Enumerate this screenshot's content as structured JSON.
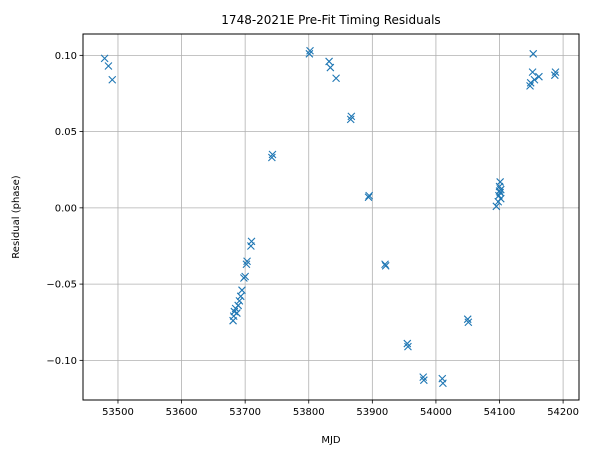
{
  "chart_data": {
    "type": "scatter",
    "title": "1748-2021E Pre-Fit Timing Residuals",
    "xlabel": "MJD",
    "ylabel": "Residual (phase)",
    "xlim": [
      53445,
      54225
    ],
    "ylim": [
      -0.126,
      0.114
    ],
    "xticks": [
      53500,
      53600,
      53700,
      53800,
      53900,
      54000,
      54100,
      54200
    ],
    "yticks": [
      -0.1,
      -0.05,
      0.0,
      0.05,
      0.1
    ],
    "xtick_labels": [
      "53500",
      "53600",
      "53700",
      "53800",
      "53900",
      "54000",
      "54100",
      "54200"
    ],
    "ytick_labels": [
      "−0.10",
      "−0.05",
      "0.00",
      "0.05",
      "0.10"
    ],
    "grid": true,
    "marker": "x",
    "color": "#1f77b4",
    "points": [
      {
        "x": 53479,
        "y": 0.098
      },
      {
        "x": 53485,
        "y": 0.093
      },
      {
        "x": 53491,
        "y": 0.084
      },
      {
        "x": 53681,
        "y": -0.074
      },
      {
        "x": 53682,
        "y": -0.071
      },
      {
        "x": 53683,
        "y": -0.068
      },
      {
        "x": 53685,
        "y": -0.066
      },
      {
        "x": 53687,
        "y": -0.069
      },
      {
        "x": 53689,
        "y": -0.064
      },
      {
        "x": 53691,
        "y": -0.061
      },
      {
        "x": 53693,
        "y": -0.058
      },
      {
        "x": 53695,
        "y": -0.054
      },
      {
        "x": 53698,
        "y": -0.046
      },
      {
        "x": 53700,
        "y": -0.045
      },
      {
        "x": 53702,
        "y": -0.037
      },
      {
        "x": 53703,
        "y": -0.035
      },
      {
        "x": 53709,
        "y": -0.025
      },
      {
        "x": 53710,
        "y": -0.022
      },
      {
        "x": 53742,
        "y": 0.033
      },
      {
        "x": 53743,
        "y": 0.035
      },
      {
        "x": 53801,
        "y": 0.101
      },
      {
        "x": 53802,
        "y": 0.103
      },
      {
        "x": 53832,
        "y": 0.096
      },
      {
        "x": 53834,
        "y": 0.092
      },
      {
        "x": 53843,
        "y": 0.085
      },
      {
        "x": 53866,
        "y": 0.058
      },
      {
        "x": 53867,
        "y": 0.06
      },
      {
        "x": 53894,
        "y": 0.007
      },
      {
        "x": 53895,
        "y": 0.008
      },
      {
        "x": 53920,
        "y": -0.037
      },
      {
        "x": 53921,
        "y": -0.038
      },
      {
        "x": 53955,
        "y": -0.089
      },
      {
        "x": 53956,
        "y": -0.091
      },
      {
        "x": 53980,
        "y": -0.111
      },
      {
        "x": 53981,
        "y": -0.113
      },
      {
        "x": 54010,
        "y": -0.112
      },
      {
        "x": 54011,
        "y": -0.115
      },
      {
        "x": 54050,
        "y": -0.073
      },
      {
        "x": 54051,
        "y": -0.075
      },
      {
        "x": 54095,
        "y": 0.001
      },
      {
        "x": 54098,
        "y": 0.004
      },
      {
        "x": 54099,
        "y": 0.008
      },
      {
        "x": 54100,
        "y": 0.011
      },
      {
        "x": 54100,
        "y": 0.014
      },
      {
        "x": 54101,
        "y": 0.017
      },
      {
        "x": 54101,
        "y": 0.01
      },
      {
        "x": 54102,
        "y": 0.012
      },
      {
        "x": 54102,
        "y": 0.006
      },
      {
        "x": 54148,
        "y": 0.08
      },
      {
        "x": 54149,
        "y": 0.082
      },
      {
        "x": 54152,
        "y": 0.089
      },
      {
        "x": 54153,
        "y": 0.101
      },
      {
        "x": 54155,
        "y": 0.084
      },
      {
        "x": 54162,
        "y": 0.086
      },
      {
        "x": 54187,
        "y": 0.087
      },
      {
        "x": 54188,
        "y": 0.089
      }
    ]
  }
}
